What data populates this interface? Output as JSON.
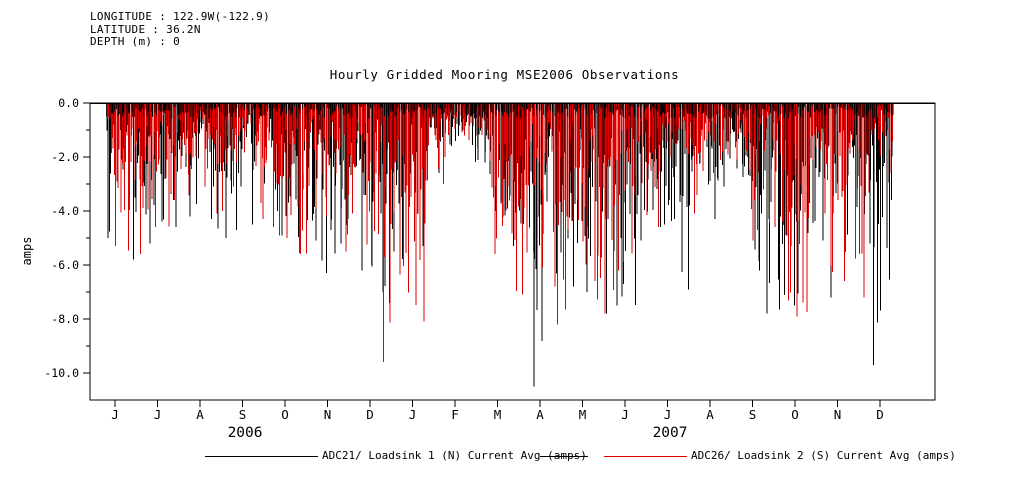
{
  "info": {
    "longitude": "LONGITUDE : 122.9W(-122.9)",
    "latitude": "LATITUDE : 36.2N",
    "depth": "DEPTH (m) : 0"
  },
  "chart_data": {
    "type": "line",
    "title": "Hourly Gridded Mooring MSE2006 Observations",
    "ylabel": "amps",
    "background": "#ffffff",
    "y_axis": {
      "min": -11,
      "max": 0,
      "ticks": [
        {
          "value": 0,
          "label": "0.0"
        },
        {
          "value": -2,
          "label": "-2.0"
        },
        {
          "value": -4,
          "label": "-4.0"
        },
        {
          "value": -6,
          "label": "-6.0"
        },
        {
          "value": -8,
          "label": "-8.0"
        },
        {
          "value": -10,
          "label": "-10.0"
        }
      ],
      "minor_tick_values": [
        -1,
        -3,
        -5,
        -7,
        -9
      ]
    },
    "x_axis": {
      "start": "2006-06",
      "end": "2007-12",
      "months": [
        "J",
        "J",
        "A",
        "S",
        "O",
        "N",
        "D",
        "J",
        "F",
        "M",
        "A",
        "M",
        "J",
        "J",
        "A",
        "S",
        "O",
        "N",
        "D"
      ],
      "years": [
        {
          "label": "2006",
          "t_center": 3.56
        },
        {
          "label": "2007",
          "t_center": 13.56
        }
      ]
    },
    "seed": 20061,
    "envelope_t0": 0.3,
    "envelope_dt": 0.5,
    "series": [
      {
        "name": "ADC21/ Loadsink 1 (N) Current Avg (amps)",
        "color": "#000000",
        "seed_offset": 0,
        "envelope_max_depth_amps": [
          5.0,
          5.8,
          5.2,
          4.6,
          4.3,
          5.0,
          4.7,
          3.2,
          4.9,
          5.1,
          6.3,
          5.2,
          6.2,
          7.4,
          5.3,
          2.6,
          1.6,
          2.2,
          4.2,
          5.3,
          10.5,
          6.8,
          7.0,
          7.8,
          7.5,
          5.1,
          4.6,
          6.9,
          4.3,
          3.1,
          6.2,
          7.8,
          7.5,
          5.1,
          7.2,
          5.2,
          9.7
        ]
      },
      {
        "name": "ADC26/ Loadsink 2 (S) Current Avg (amps)",
        "color": "#dd0000",
        "seed_offset": 101,
        "envelope_max_depth_amps": [
          5.3,
          5.6,
          4.6,
          3.6,
          3.1,
          4.1,
          2.2,
          4.6,
          5.0,
          5.6,
          4.2,
          5.5,
          6.0,
          9.6,
          8.1,
          3.0,
          1.2,
          1.8,
          5.6,
          7.1,
          6.1,
          8.2,
          6.6,
          7.8,
          6.2,
          4.6,
          3.6,
          4.1,
          2.6,
          2.1,
          5.1,
          4.6,
          7.9,
          4.1,
          6.6,
          7.2,
          2.6
        ]
      }
    ]
  }
}
